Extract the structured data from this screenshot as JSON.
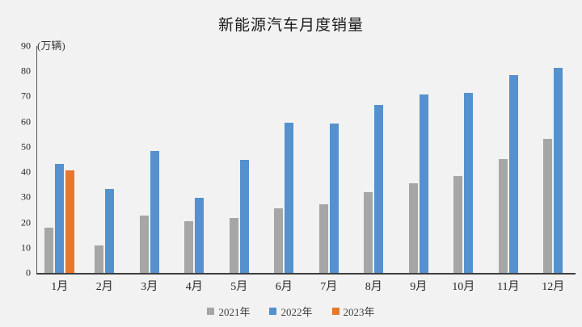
{
  "chart_data": {
    "type": "bar",
    "title": "新能源汽车月度销量",
    "unit_label": "(万辆)",
    "categories": [
      "1月",
      "2月",
      "3月",
      "4月",
      "5月",
      "6月",
      "7月",
      "8月",
      "9月",
      "10月",
      "11月",
      "12月"
    ],
    "series": [
      {
        "name": "2021年",
        "color": "#A6A6A6",
        "values": [
          17.9,
          11.0,
          22.6,
          20.6,
          21.7,
          25.6,
          27.1,
          32.1,
          35.7,
          38.3,
          45.0,
          53.1
        ]
      },
      {
        "name": "2022年",
        "color": "#5491CE",
        "values": [
          43.1,
          33.4,
          48.4,
          29.9,
          44.7,
          59.6,
          59.3,
          66.6,
          70.8,
          71.4,
          78.6,
          81.4
        ]
      },
      {
        "name": "2023年",
        "color": "#E8772E",
        "values": [
          40.8,
          null,
          null,
          null,
          null,
          null,
          null,
          null,
          null,
          null,
          null,
          null
        ]
      }
    ],
    "ylim": [
      0,
      90
    ],
    "ytick_step": 10,
    "ytick_labels": [
      "0",
      "10",
      "20",
      "30",
      "40",
      "50",
      "60",
      "70",
      "80",
      "90"
    ],
    "xlabel": "",
    "ylabel": "(万辆)",
    "grid": false,
    "legend_position": "bottom",
    "background_color": "#F2F2F2",
    "axis_color": "#3F3F3F"
  }
}
